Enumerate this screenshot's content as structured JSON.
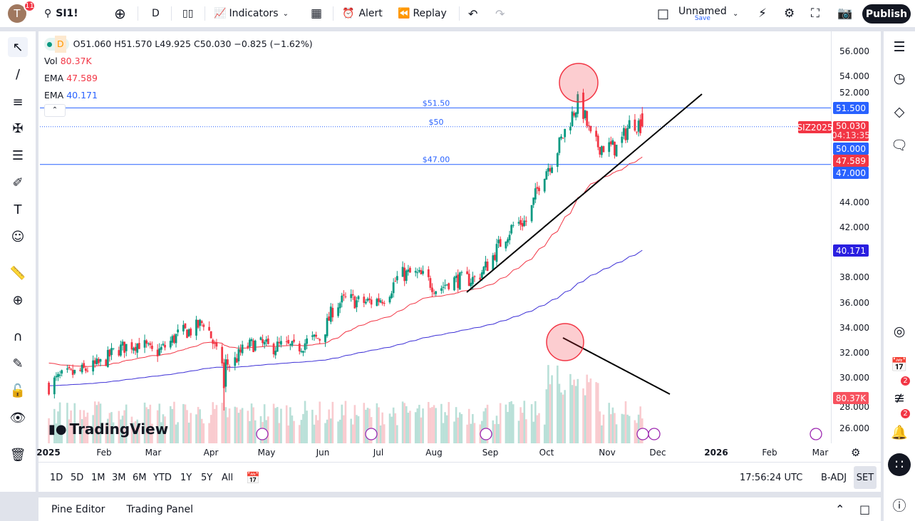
{
  "topbar": {
    "avatar_letter": "T",
    "notifications": "11",
    "symbol": "SI1!",
    "interval": "D",
    "indicators": "Indicators",
    "alert": "Alert",
    "replay": "Replay",
    "layout_name": "Unnamed",
    "layout_status": "Save",
    "publish": "Publish"
  },
  "legend": {
    "interval": "D",
    "ohlc": "O51.060 H51.570 L49.925 C50.030 −0.825 (−1.62%)",
    "vol_label": "Vol",
    "vol_value": "80.37K",
    "ema1_label": "EMA",
    "ema1_value": "47.589",
    "ema2_label": "EMA",
    "ema2_value": "40.171"
  },
  "colors": {
    "up": "#089981",
    "down": "#f23645",
    "ema_fast": "#f23645",
    "ema_slow": "#2962ff",
    "ema_slow_dark": "#3c2fd6",
    "hline": "#2962ff",
    "accent": "#2962ff"
  },
  "hlines": [
    {
      "price": 51.5,
      "label": "$51.50",
      "axis": "51.500"
    },
    {
      "price": 50,
      "label": "$50",
      "axis": "50.000",
      "dotted": true
    },
    {
      "price": 47,
      "label": "$47.00",
      "axis": "47.000"
    }
  ],
  "price_labels": {
    "symbol_tag": "SIZ2025",
    "last": "50.030",
    "countdown": "04:13:35",
    "ema_fast": "47.589",
    "ema_slow": "40.171",
    "volume": "80.37K"
  },
  "chart_data": {
    "type": "candlestick",
    "symbol": "SI1!",
    "interval": "D",
    "ylim": [
      26,
      56
    ],
    "yticks": [
      "56.000",
      "54.000",
      "52.000",
      "44.000",
      "42.000",
      "38.000",
      "36.000",
      "34.000",
      "32.000",
      "30.000",
      "28.000",
      "26.000"
    ],
    "xticks": [
      "2025",
      "Feb",
      "Mar",
      "Apr",
      "May",
      "Jun",
      "Jul",
      "Aug",
      "Sep",
      "Oct",
      "Nov",
      "Dec",
      "2026",
      "Feb",
      "Mar"
    ],
    "weekly_close_dates": [
      "2025-01-03",
      "2025-01-10",
      "2025-01-17",
      "2025-01-24",
      "2025-01-31",
      "2025-02-07",
      "2025-02-14",
      "2025-02-21",
      "2025-02-28",
      "2025-03-07",
      "2025-03-14",
      "2025-03-21",
      "2025-03-28",
      "2025-04-04",
      "2025-04-11",
      "2025-04-18",
      "2025-04-25",
      "2025-05-02",
      "2025-05-09",
      "2025-05-16",
      "2025-05-23",
      "2025-05-30",
      "2025-06-06",
      "2025-06-13",
      "2025-06-20",
      "2025-06-27",
      "2025-07-04",
      "2025-07-11",
      "2025-07-18",
      "2025-07-25",
      "2025-08-01",
      "2025-08-08",
      "2025-08-15",
      "2025-08-22",
      "2025-08-29",
      "2025-09-05",
      "2025-09-12",
      "2025-09-19",
      "2025-09-26",
      "2025-10-03",
      "2025-10-10",
      "2025-10-17",
      "2025-10-24",
      "2025-10-31",
      "2025-11-07",
      "2025-11-14",
      "2025-11-21"
    ],
    "weekly_close": [
      29.6,
      30.2,
      30.4,
      30.8,
      31.2,
      32.2,
      32.6,
      32.8,
      31.9,
      32.6,
      33.6,
      33.8,
      34.6,
      31.5,
      31.0,
      32.4,
      32.8,
      32.4,
      32.6,
      32.3,
      33.0,
      33.2,
      35.8,
      36.3,
      36.0,
      36.1,
      36.5,
      38.2,
      38.3,
      38.0,
      37.0,
      37.8,
      37.8,
      37.9,
      39.2,
      41.0,
      42.3,
      42.5,
      46.0,
      47.5,
      50.0,
      52.2,
      48.6,
      48.4,
      48.3,
      50.5,
      50.03
    ],
    "last_bar": {
      "open": 51.06,
      "high": 51.57,
      "low": 49.925,
      "close": 50.03
    },
    "ema_fast_last": 47.589,
    "ema_slow_last": 40.171,
    "volume_last": "80.37K"
  },
  "timeaxis": {
    "clock": "17:56:24 UTC",
    "badj": "B-ADJ",
    "set": "SET"
  },
  "ranges": [
    "1D",
    "5D",
    "1M",
    "3M",
    "6M",
    "YTD",
    "1Y",
    "5Y",
    "All"
  ],
  "bottom": {
    "pine": "Pine Editor",
    "panel": "Trading Panel"
  },
  "right_sidebar": {
    "badge_ideas": "2",
    "badge_alerts": "2"
  },
  "watermark": "TradingView"
}
